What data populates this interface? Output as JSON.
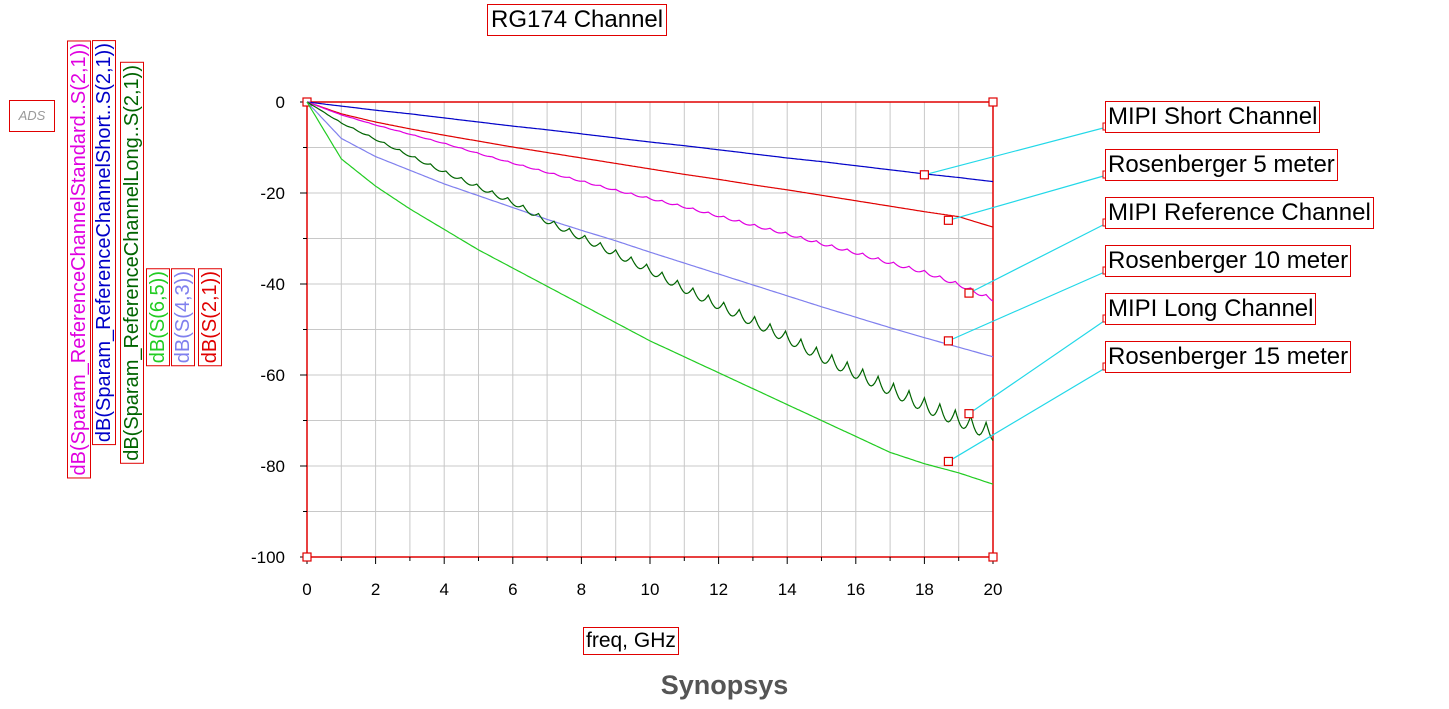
{
  "logo": "ADS",
  "caption": "Synopsys",
  "expressions": [
    {
      "text": "dB(Sparam_ReferenceChannelStandard..S(2,1))",
      "color": "#e000e0"
    },
    {
      "text": "dB(Sparam_ReferenceChannelShort..S(2,1))",
      "color": "#0000c8"
    },
    {
      "text": "dB(Sparam_ReferenceChannelLong..S(2,1))",
      "color": "#006400"
    },
    {
      "text": "dB(S(6,5))",
      "color": "#22cc22"
    },
    {
      "text": "dB(S(4,3))",
      "color": "#8080ee"
    },
    {
      "text": "dB(S(2,1))",
      "color": "#e00000"
    }
  ],
  "chart_data": {
    "type": "line",
    "title": "RG174 Channel",
    "xlabel": "freq, GHz",
    "ylabel": "",
    "xlim": [
      0,
      20
    ],
    "ylim": [
      -100,
      0
    ],
    "xticks": [
      0,
      2,
      4,
      6,
      8,
      10,
      12,
      14,
      16,
      18,
      20
    ],
    "yticks": [
      0,
      -20,
      -40,
      -60,
      -80,
      -100
    ],
    "grid": true,
    "x": [
      0,
      1,
      2,
      3,
      4,
      5,
      6,
      7,
      8,
      9,
      10,
      11,
      12,
      13,
      14,
      15,
      16,
      17,
      18,
      19,
      20
    ],
    "series": [
      {
        "name": "MIPI Short Channel",
        "color": "#0000c8",
        "ripple": 0,
        "values": [
          0,
          -0.9,
          -1.8,
          -2.6,
          -3.5,
          -4.4,
          -5.3,
          -6.1,
          -7.0,
          -7.9,
          -8.8,
          -9.6,
          -10.5,
          -11.4,
          -12.3,
          -13.1,
          -14.0,
          -14.9,
          -15.8,
          -16.6,
          -17.5
        ],
        "marker": {
          "x": 18.0,
          "y": -16.0
        }
      },
      {
        "name": "Rosenberger 5 meter",
        "color": "#e00000",
        "ripple": 0,
        "values": [
          0,
          -2.6,
          -4.4,
          -5.9,
          -7.3,
          -8.6,
          -9.9,
          -11.1,
          -12.3,
          -13.5,
          -14.7,
          -15.9,
          -17.0,
          -18.2,
          -19.3,
          -20.5,
          -21.7,
          -22.9,
          -24.1,
          -25.2,
          -27.5
        ],
        "marker": {
          "x": 18.7,
          "y": -26.0
        }
      },
      {
        "name": "MIPI Reference Channel",
        "color": "#e000e0",
        "ripple": 0.8,
        "values": [
          0,
          -2.8,
          -5.0,
          -7.0,
          -9.0,
          -11.2,
          -13.3,
          -15.3,
          -17.2,
          -19.2,
          -21.0,
          -22.8,
          -24.8,
          -26.8,
          -28.7,
          -30.8,
          -32.8,
          -35.0,
          -37.0,
          -39.7,
          -43.0
        ],
        "marker": {
          "x": 19.3,
          "y": -42.0
        }
      },
      {
        "name": "Rosenberger 10 meter",
        "color": "#8080ee",
        "ripple": 0,
        "values": [
          0,
          -8.0,
          -12.0,
          -15.0,
          -18.0,
          -20.6,
          -23.2,
          -25.8,
          -28.2,
          -30.5,
          -33.0,
          -35.4,
          -37.8,
          -40.2,
          -42.6,
          -45.0,
          -47.3,
          -49.6,
          -51.8,
          -53.9,
          -56.0
        ],
        "marker": {
          "x": 18.7,
          "y": -52.5
        }
      },
      {
        "name": "MIPI Long Channel",
        "color": "#006400",
        "ripple": 3.5,
        "values": [
          0,
          -4.5,
          -8.0,
          -11.5,
          -15.0,
          -18.2,
          -21.5,
          -25.5,
          -29.0,
          -32.5,
          -36.0,
          -40.0,
          -43.5,
          -47.0,
          -50.5,
          -54.5,
          -58.0,
          -61.5,
          -65.0,
          -68.0,
          -71.0
        ],
        "marker": {
          "x": 19.3,
          "y": -68.5
        }
      },
      {
        "name": "Rosenberger 15 meter",
        "color": "#22cc22",
        "ripple": 0,
        "values": [
          0,
          -12.5,
          -18.5,
          -23.5,
          -28.0,
          -32.5,
          -36.5,
          -40.5,
          -44.5,
          -48.5,
          -52.5,
          -56.0,
          -59.5,
          -63.0,
          -66.5,
          -70.0,
          -73.5,
          -77.0,
          -79.5,
          -81.5,
          -84.0
        ],
        "marker": {
          "x": 18.7,
          "y": -79.0
        }
      }
    ]
  }
}
